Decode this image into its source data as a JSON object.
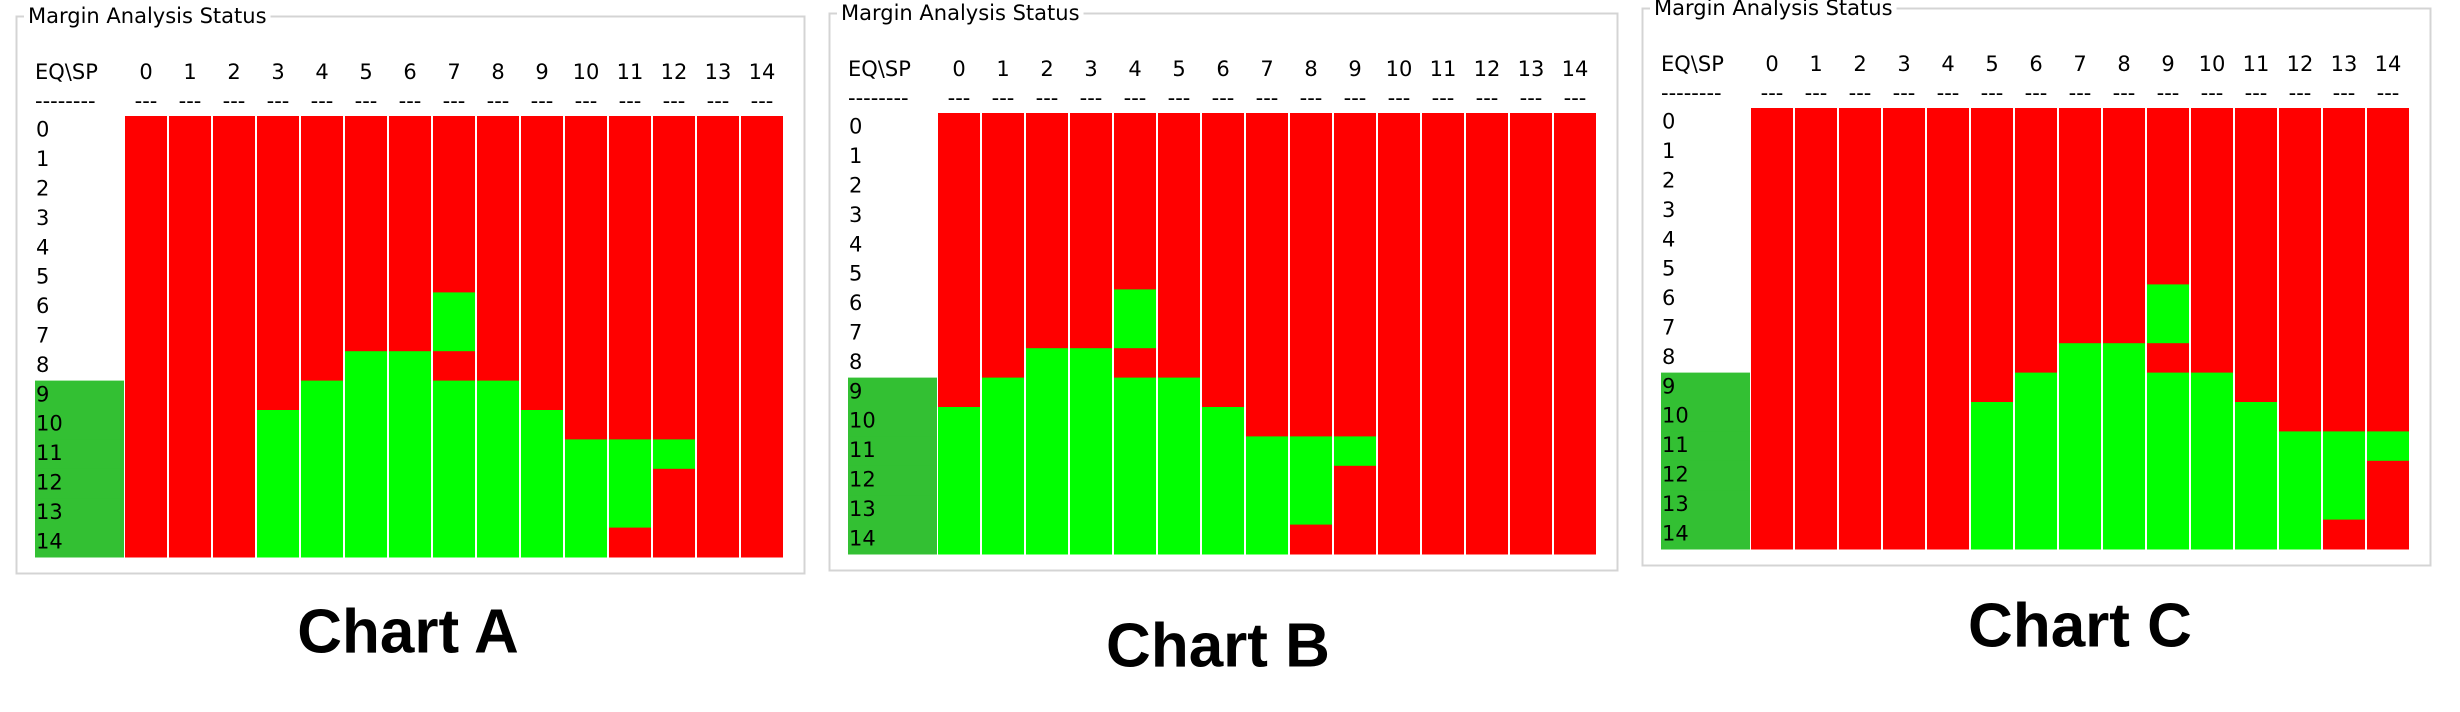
{
  "panels": [
    {
      "label": "Chart A",
      "title": "Margin Analysis Status",
      "corner": "EQ\\SP",
      "corner_rule": "--------",
      "column_rule": "---",
      "columns": [
        "0",
        "1",
        "2",
        "3",
        "4",
        "5",
        "6",
        "7",
        "8",
        "9",
        "10",
        "11",
        "12",
        "13",
        "14"
      ],
      "rows": [
        "0",
        "1",
        "2",
        "3",
        "4",
        "5",
        "6",
        "7",
        "8",
        "9",
        "10",
        "11",
        "12",
        "13",
        "14"
      ],
      "row_label_colors": [
        "#ffffff",
        "#ffffff",
        "#ffffff",
        "#ffffff",
        "#ffffff",
        "#ffffff",
        "#ffffff",
        "#ffffff",
        "#ffffff",
        "#33c033",
        "#33c033",
        "#33c033",
        "#33c033",
        "#33c033",
        "#33c033"
      ],
      "palette": [
        "#ff0000",
        "#00ff00"
      ],
      "cells": [
        [
          0,
          0,
          0,
          0,
          0,
          0,
          0,
          0,
          0,
          0,
          0,
          0,
          0,
          0,
          0
        ],
        [
          0,
          0,
          0,
          0,
          0,
          0,
          0,
          0,
          0,
          0,
          0,
          0,
          0,
          0,
          0
        ],
        [
          0,
          0,
          0,
          0,
          0,
          0,
          0,
          0,
          0,
          0,
          0,
          0,
          0,
          0,
          0
        ],
        [
          0,
          0,
          0,
          0,
          0,
          0,
          0,
          0,
          0,
          0,
          0,
          0,
          0,
          0,
          0
        ],
        [
          0,
          0,
          0,
          0,
          0,
          0,
          0,
          0,
          0,
          0,
          0,
          0,
          0,
          0,
          0
        ],
        [
          0,
          0,
          0,
          0,
          0,
          0,
          0,
          0,
          0,
          0,
          0,
          0,
          0,
          0,
          0
        ],
        [
          0,
          0,
          0,
          0,
          0,
          0,
          0,
          1,
          0,
          0,
          0,
          0,
          0,
          0,
          0
        ],
        [
          0,
          0,
          0,
          0,
          0,
          0,
          0,
          1,
          0,
          0,
          0,
          0,
          0,
          0,
          0
        ],
        [
          0,
          0,
          0,
          0,
          0,
          1,
          1,
          0,
          0,
          0,
          0,
          0,
          0,
          0,
          0
        ],
        [
          0,
          0,
          0,
          0,
          1,
          1,
          1,
          1,
          1,
          0,
          0,
          0,
          0,
          0,
          0
        ],
        [
          0,
          0,
          0,
          1,
          1,
          1,
          1,
          1,
          1,
          1,
          0,
          0,
          0,
          0,
          0
        ],
        [
          0,
          0,
          0,
          1,
          1,
          1,
          1,
          1,
          1,
          1,
          1,
          1,
          1,
          0,
          0
        ],
        [
          0,
          0,
          0,
          1,
          1,
          1,
          1,
          1,
          1,
          1,
          1,
          1,
          0,
          0,
          0
        ],
        [
          0,
          0,
          0,
          1,
          1,
          1,
          1,
          1,
          1,
          1,
          1,
          1,
          0,
          0,
          0
        ],
        [
          0,
          0,
          0,
          1,
          1,
          1,
          1,
          1,
          1,
          1,
          1,
          0,
          0,
          0,
          0
        ]
      ]
    },
    {
      "label": "Chart B",
      "title": "Margin Analysis Status",
      "corner": "EQ\\SP",
      "corner_rule": "--------",
      "column_rule": "---",
      "columns": [
        "0",
        "1",
        "2",
        "3",
        "4",
        "5",
        "6",
        "7",
        "8",
        "9",
        "10",
        "11",
        "12",
        "13",
        "14"
      ],
      "rows": [
        "0",
        "1",
        "2",
        "3",
        "4",
        "5",
        "6",
        "7",
        "8",
        "9",
        "10",
        "11",
        "12",
        "13",
        "14"
      ],
      "row_label_colors": [
        "#ffffff",
        "#ffffff",
        "#ffffff",
        "#ffffff",
        "#ffffff",
        "#ffffff",
        "#ffffff",
        "#ffffff",
        "#ffffff",
        "#33c033",
        "#33c033",
        "#33c033",
        "#33c033",
        "#33c033",
        "#33c033"
      ],
      "palette": [
        "#ff0000",
        "#00ff00"
      ],
      "cells": [
        [
          0,
          0,
          0,
          0,
          0,
          0,
          0,
          0,
          0,
          0,
          0,
          0,
          0,
          0,
          0
        ],
        [
          0,
          0,
          0,
          0,
          0,
          0,
          0,
          0,
          0,
          0,
          0,
          0,
          0,
          0,
          0
        ],
        [
          0,
          0,
          0,
          0,
          0,
          0,
          0,
          0,
          0,
          0,
          0,
          0,
          0,
          0,
          0
        ],
        [
          0,
          0,
          0,
          0,
          0,
          0,
          0,
          0,
          0,
          0,
          0,
          0,
          0,
          0,
          0
        ],
        [
          0,
          0,
          0,
          0,
          0,
          0,
          0,
          0,
          0,
          0,
          0,
          0,
          0,
          0,
          0
        ],
        [
          0,
          0,
          0,
          0,
          0,
          0,
          0,
          0,
          0,
          0,
          0,
          0,
          0,
          0,
          0
        ],
        [
          0,
          0,
          0,
          0,
          1,
          0,
          0,
          0,
          0,
          0,
          0,
          0,
          0,
          0,
          0
        ],
        [
          0,
          0,
          0,
          0,
          1,
          0,
          0,
          0,
          0,
          0,
          0,
          0,
          0,
          0,
          0
        ],
        [
          0,
          0,
          1,
          1,
          0,
          0,
          0,
          0,
          0,
          0,
          0,
          0,
          0,
          0,
          0
        ],
        [
          0,
          1,
          1,
          1,
          1,
          1,
          0,
          0,
          0,
          0,
          0,
          0,
          0,
          0,
          0
        ],
        [
          1,
          1,
          1,
          1,
          1,
          1,
          1,
          0,
          0,
          0,
          0,
          0,
          0,
          0,
          0
        ],
        [
          1,
          1,
          1,
          1,
          1,
          1,
          1,
          1,
          1,
          1,
          0,
          0,
          0,
          0,
          0
        ],
        [
          1,
          1,
          1,
          1,
          1,
          1,
          1,
          1,
          1,
          0,
          0,
          0,
          0,
          0,
          0
        ],
        [
          1,
          1,
          1,
          1,
          1,
          1,
          1,
          1,
          1,
          0,
          0,
          0,
          0,
          0,
          0
        ],
        [
          1,
          1,
          1,
          1,
          1,
          1,
          1,
          1,
          0,
          0,
          0,
          0,
          0,
          0,
          0
        ]
      ]
    },
    {
      "label": "Chart C",
      "title": "Margin Analysis Status",
      "corner": "EQ\\SP",
      "corner_rule": "--------",
      "column_rule": "---",
      "columns": [
        "0",
        "1",
        "2",
        "3",
        "4",
        "5",
        "6",
        "7",
        "8",
        "9",
        "10",
        "11",
        "12",
        "13",
        "14"
      ],
      "rows": [
        "0",
        "1",
        "2",
        "3",
        "4",
        "5",
        "6",
        "7",
        "8",
        "9",
        "10",
        "11",
        "12",
        "13",
        "14"
      ],
      "row_label_colors": [
        "#ffffff",
        "#ffffff",
        "#ffffff",
        "#ffffff",
        "#ffffff",
        "#ffffff",
        "#ffffff",
        "#ffffff",
        "#ffffff",
        "#33c033",
        "#33c033",
        "#33c033",
        "#33c033",
        "#33c033",
        "#33c033"
      ],
      "palette": [
        "#ff0000",
        "#00ff00"
      ],
      "cells": [
        [
          0,
          0,
          0,
          0,
          0,
          0,
          0,
          0,
          0,
          0,
          0,
          0,
          0,
          0,
          0
        ],
        [
          0,
          0,
          0,
          0,
          0,
          0,
          0,
          0,
          0,
          0,
          0,
          0,
          0,
          0,
          0
        ],
        [
          0,
          0,
          0,
          0,
          0,
          0,
          0,
          0,
          0,
          0,
          0,
          0,
          0,
          0,
          0
        ],
        [
          0,
          0,
          0,
          0,
          0,
          0,
          0,
          0,
          0,
          0,
          0,
          0,
          0,
          0,
          0
        ],
        [
          0,
          0,
          0,
          0,
          0,
          0,
          0,
          0,
          0,
          0,
          0,
          0,
          0,
          0,
          0
        ],
        [
          0,
          0,
          0,
          0,
          0,
          0,
          0,
          0,
          0,
          0,
          0,
          0,
          0,
          0,
          0
        ],
        [
          0,
          0,
          0,
          0,
          0,
          0,
          0,
          0,
          0,
          1,
          0,
          0,
          0,
          0,
          0
        ],
        [
          0,
          0,
          0,
          0,
          0,
          0,
          0,
          0,
          0,
          1,
          0,
          0,
          0,
          0,
          0
        ],
        [
          0,
          0,
          0,
          0,
          0,
          0,
          0,
          1,
          1,
          0,
          0,
          0,
          0,
          0,
          0
        ],
        [
          0,
          0,
          0,
          0,
          0,
          0,
          1,
          1,
          1,
          1,
          1,
          0,
          0,
          0,
          0
        ],
        [
          0,
          0,
          0,
          0,
          0,
          1,
          1,
          1,
          1,
          1,
          1,
          1,
          0,
          0,
          0
        ],
        [
          0,
          0,
          0,
          0,
          0,
          1,
          1,
          1,
          1,
          1,
          1,
          1,
          1,
          1,
          1
        ],
        [
          0,
          0,
          0,
          0,
          0,
          1,
          1,
          1,
          1,
          1,
          1,
          1,
          1,
          1,
          0
        ],
        [
          0,
          0,
          0,
          0,
          0,
          1,
          1,
          1,
          1,
          1,
          1,
          1,
          1,
          1,
          0
        ],
        [
          0,
          0,
          0,
          0,
          0,
          1,
          1,
          1,
          1,
          1,
          1,
          1,
          1,
          0,
          0
        ]
      ]
    }
  ]
}
